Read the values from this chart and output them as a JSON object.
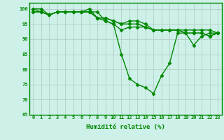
{
  "title": "",
  "xlabel": "Humidité relative (%)",
  "ylabel": "",
  "background_color": "#cdf0e8",
  "grid_color": "#b0c8c0",
  "line_color": "#008800",
  "marker": "D",
  "marker_size": 2.5,
  "linewidth": 1.0,
  "xlim": [
    -0.5,
    23.5
  ],
  "ylim": [
    65,
    102
  ],
  "yticks": [
    65,
    70,
    75,
    80,
    85,
    90,
    95,
    100
  ],
  "xticks": [
    0,
    1,
    2,
    3,
    4,
    5,
    6,
    7,
    8,
    9,
    10,
    11,
    12,
    13,
    14,
    15,
    16,
    17,
    18,
    19,
    20,
    21,
    22,
    23
  ],
  "series": [
    [
      99,
      99,
      98,
      99,
      99,
      99,
      99,
      99,
      99,
      96,
      95,
      85,
      77,
      75,
      74,
      72,
      78,
      82,
      92,
      92,
      88,
      91,
      92,
      92
    ],
    [
      99,
      99,
      98,
      99,
      99,
      99,
      99,
      100,
      97,
      96,
      95,
      93,
      94,
      94,
      94,
      93,
      93,
      93,
      93,
      93,
      93,
      93,
      93,
      92
    ],
    [
      100,
      99,
      98,
      99,
      99,
      99,
      99,
      99,
      97,
      97,
      96,
      95,
      95,
      95,
      94,
      93,
      93,
      93,
      93,
      92,
      92,
      92,
      91,
      92
    ],
    [
      100,
      100,
      98,
      99,
      99,
      99,
      99,
      99,
      97,
      97,
      96,
      95,
      96,
      96,
      95,
      93,
      93,
      93,
      93,
      92,
      92,
      92,
      91,
      92
    ]
  ],
  "xlabel_fontsize": 6.5,
  "tick_fontsize": 5.0,
  "xlabel_color": "#008800",
  "tick_color": "#008800"
}
